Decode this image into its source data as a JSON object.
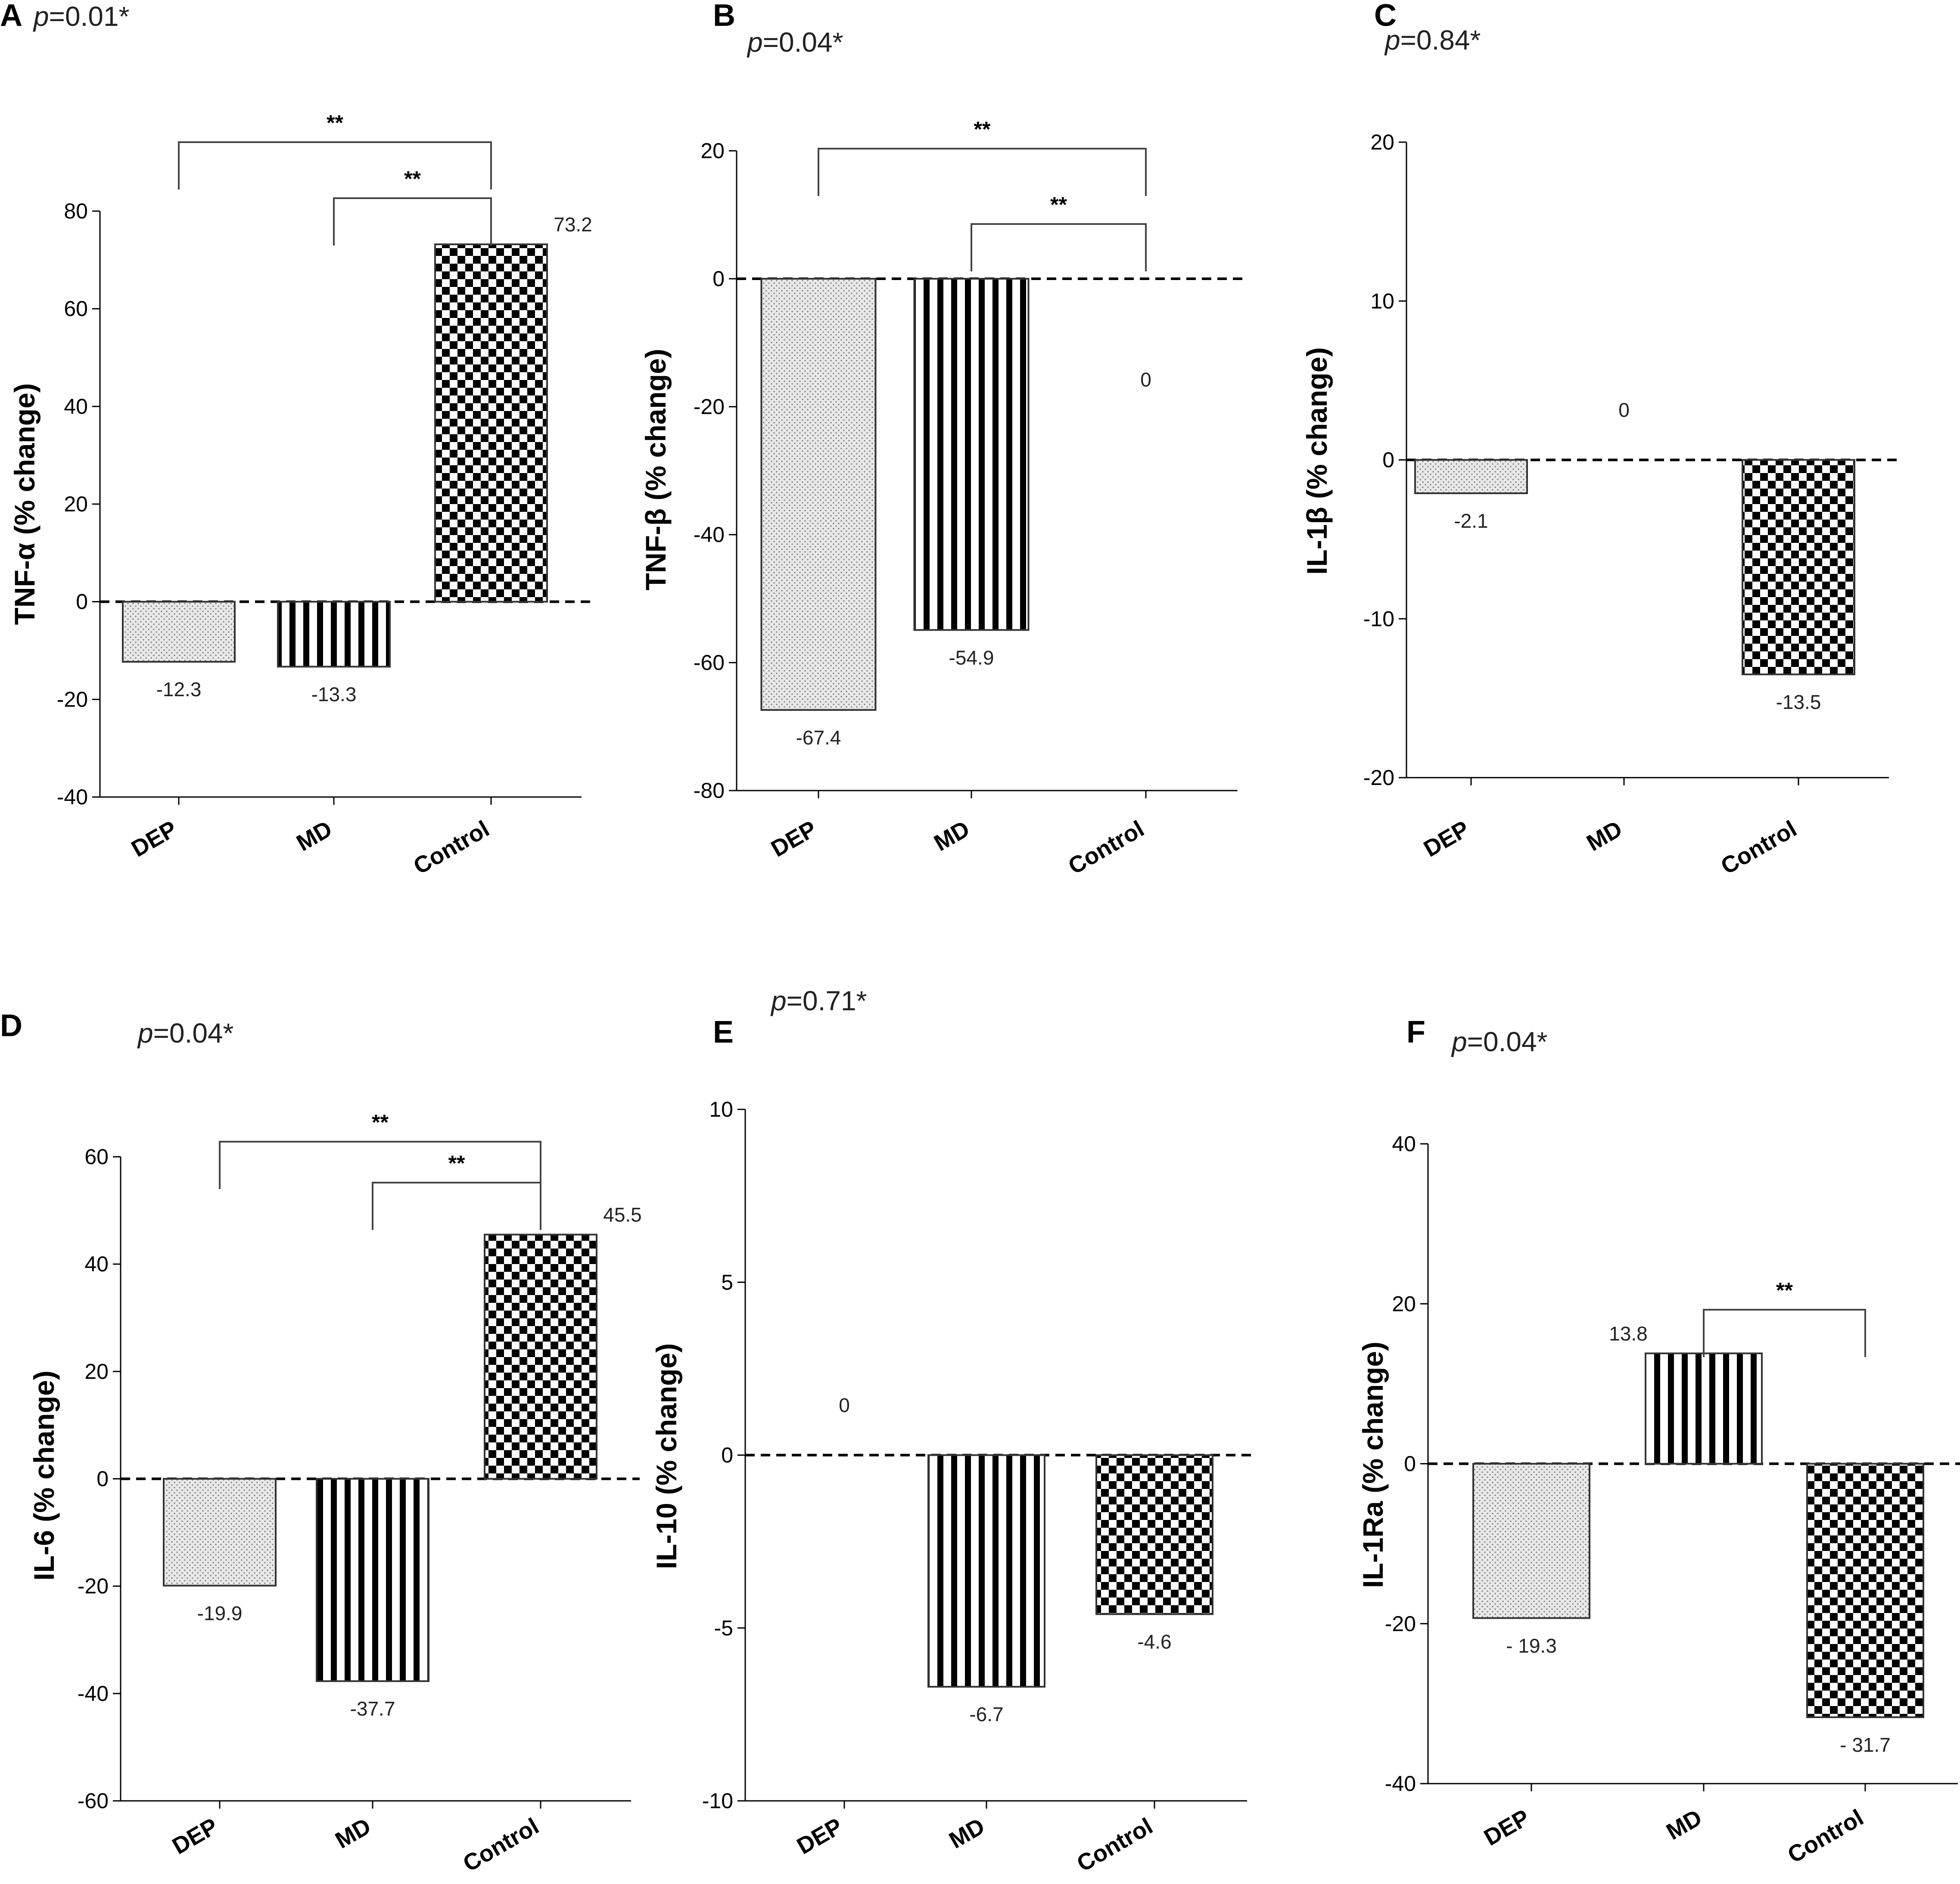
{
  "chart_data": [
    {
      "type": "bar",
      "panel": "A",
      "p_prefix": "p",
      "p_value": "=0.01*",
      "ylabel": "TNF-α (% change)",
      "ylim": [
        -40,
        80
      ],
      "yticks": [
        -40,
        -20,
        0,
        20,
        40,
        60,
        80
      ],
      "categories": [
        "DEP",
        "MD",
        "Control"
      ],
      "values": [
        -12.3,
        -13.3,
        73.2
      ],
      "value_labels": [
        "-12.3",
        "-13.3",
        "73.2"
      ],
      "patterns": [
        "dots",
        "stripes",
        "checker"
      ],
      "significance": [
        {
          "from": "DEP",
          "to": "Control",
          "label": "**"
        },
        {
          "from": "MD",
          "to": "Control",
          "label": "**"
        }
      ]
    },
    {
      "type": "bar",
      "panel": "B",
      "p_prefix": "p",
      "p_value": "=0.04*",
      "ylabel": "TNF-β (% change)",
      "ylim": [
        -80,
        20
      ],
      "yticks": [
        -80,
        -60,
        -40,
        -20,
        0,
        20
      ],
      "categories": [
        "DEP",
        "MD",
        "Control"
      ],
      "values": [
        -67.4,
        -54.9,
        0
      ],
      "value_labels": [
        "-67.4",
        "-54.9",
        "0"
      ],
      "patterns": [
        "dots",
        "stripes",
        "checker"
      ],
      "significance": [
        {
          "from": "DEP",
          "to": "Control",
          "label": "**"
        },
        {
          "from": "MD",
          "to": "Control",
          "label": "**"
        }
      ]
    },
    {
      "type": "bar",
      "panel": "C",
      "p_prefix": "p",
      "p_value": "=0.84*",
      "ylabel": "IL-1β (% change)",
      "ylim": [
        -20,
        20
      ],
      "yticks": [
        -20,
        -10,
        0,
        10,
        20
      ],
      "categories": [
        "DEP",
        "MD",
        "Control"
      ],
      "values": [
        -2.1,
        0,
        -13.5
      ],
      "value_labels": [
        "-2.1",
        "0",
        "-13.5"
      ],
      "patterns": [
        "dots",
        "stripes",
        "checker"
      ],
      "significance": []
    },
    {
      "type": "bar",
      "panel": "D",
      "p_prefix": "p",
      "p_value": "=0.04*",
      "ylabel": "IL-6 (% change)",
      "ylim": [
        -60,
        60
      ],
      "yticks": [
        -60,
        -40,
        -20,
        0,
        20,
        40,
        60
      ],
      "categories": [
        "DEP",
        "MD",
        "Control"
      ],
      "values": [
        -19.9,
        -37.7,
        45.5
      ],
      "value_labels": [
        "-19.9",
        "-37.7",
        "45.5"
      ],
      "patterns": [
        "dots",
        "stripes",
        "checker"
      ],
      "significance": [
        {
          "from": "DEP",
          "to": "Control",
          "label": "**"
        },
        {
          "from": "MD",
          "to": "Control",
          "label": "**"
        }
      ]
    },
    {
      "type": "bar",
      "panel": "E",
      "p_prefix": "p",
      "p_value": "=0.71*",
      "ylabel": "IL-10 (% change)",
      "ylim": [
        -10,
        10
      ],
      "yticks": [
        -10,
        -5,
        0,
        5,
        10
      ],
      "categories": [
        "DEP",
        "MD",
        "Control"
      ],
      "values": [
        0,
        -6.7,
        -4.6
      ],
      "value_labels": [
        "0",
        "-6.7",
        "-4.6"
      ],
      "patterns": [
        "dots",
        "stripes",
        "checker"
      ],
      "significance": []
    },
    {
      "type": "bar",
      "panel": "F",
      "p_prefix": "p",
      "p_value": "=0.04*",
      "ylabel": "IL-1Ra (% change)",
      "ylim": [
        -40,
        40
      ],
      "yticks": [
        -40,
        -20,
        0,
        20,
        40
      ],
      "categories": [
        "DEP",
        "MD",
        "Control"
      ],
      "values": [
        -19.3,
        13.8,
        -31.7
      ],
      "value_labels": [
        "- 19.3",
        "13.8",
        "- 31.7"
      ],
      "patterns": [
        "dots",
        "stripes",
        "checker"
      ],
      "significance": [
        {
          "from": "MD",
          "to": "Control",
          "label": "**"
        }
      ]
    }
  ]
}
